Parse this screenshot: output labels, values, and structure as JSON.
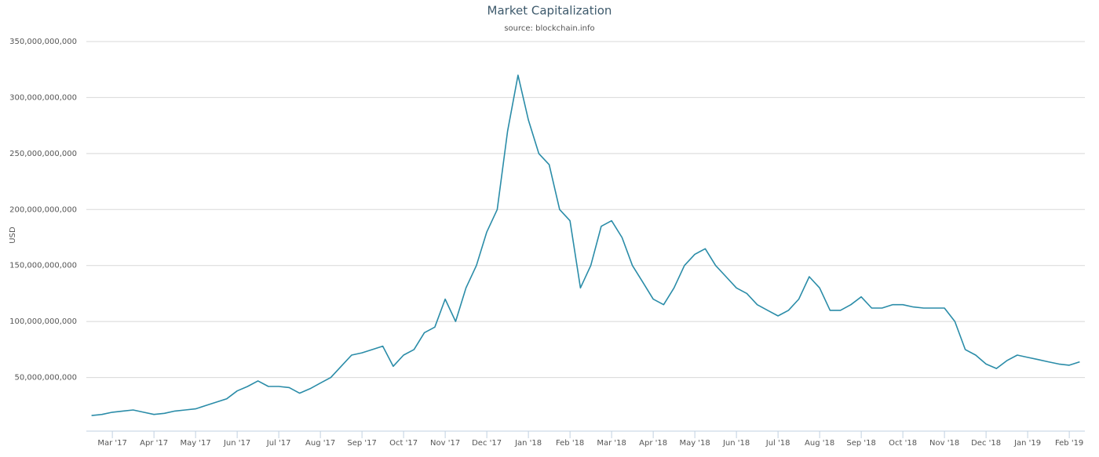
{
  "chart_data": {
    "type": "line",
    "title": "Market Capitalization",
    "subtitle": "source: blockchain.info",
    "y_label": "USD",
    "categories": [
      null,
      null,
      "Mar '17",
      null,
      null,
      null,
      "Apr '17",
      null,
      null,
      null,
      "May '17",
      null,
      null,
      null,
      "Jun '17",
      null,
      null,
      null,
      "Jul '17",
      null,
      null,
      null,
      "Aug '17",
      null,
      null,
      null,
      "Sep '17",
      null,
      null,
      null,
      "Oct '17",
      null,
      null,
      null,
      "Nov '17",
      null,
      null,
      null,
      "Dec '17",
      null,
      null,
      null,
      "Jan '18",
      null,
      null,
      null,
      "Feb '18",
      null,
      null,
      null,
      "Mar '18",
      null,
      null,
      null,
      "Apr '18",
      null,
      null,
      null,
      "May '18",
      null,
      null,
      null,
      "Jun '18",
      null,
      null,
      null,
      "Jul '18",
      null,
      null,
      null,
      "Aug '18",
      null,
      null,
      null,
      "Sep '18",
      null,
      null,
      null,
      "Oct '18",
      null,
      null,
      null,
      "Nov '18",
      null,
      null,
      null,
      "Dec '18",
      null,
      null,
      null,
      "Jan '19",
      null,
      null,
      null,
      "Feb '19",
      null
    ],
    "series": [
      {
        "name": "Market Capitalization",
        "color": "#2a8ca8",
        "values": [
          16000000000.0,
          17000000000.0,
          19000000000.0,
          20000000000.0,
          21000000000.0,
          19000000000.0,
          17000000000.0,
          18000000000.0,
          20000000000.0,
          21000000000.0,
          22000000000.0,
          25000000000.0,
          28000000000.0,
          31000000000.0,
          38000000000.0,
          42000000000.0,
          47000000000.0,
          42000000000.0,
          42000000000.0,
          41000000000.0,
          36000000000.0,
          40000000000.0,
          45000000000.0,
          50000000000.0,
          60000000000.0,
          70000000000.0,
          72000000000.0,
          75000000000.0,
          78000000000.0,
          60000000000.0,
          70000000000.0,
          75000000000.0,
          90000000000.0,
          95000000000.0,
          120000000000.0,
          100000000000.0,
          130000000000.0,
          150000000000.0,
          180000000000.0,
          200000000000.0,
          270000000000.0,
          320000000000.0,
          280000000000.0,
          250000000000.0,
          240000000000.0,
          200000000000.0,
          190000000000.0,
          130000000000.0,
          150000000000.0,
          185000000000.0,
          190000000000.0,
          175000000000.0,
          150000000000.0,
          135000000000.0,
          120000000000.0,
          115000000000.0,
          130000000000.0,
          150000000000.0,
          160000000000.0,
          165000000000.0,
          150000000000.0,
          140000000000.0,
          130000000000.0,
          125000000000.0,
          115000000000.0,
          110000000000.0,
          105000000000.0,
          110000000000.0,
          120000000000.0,
          140000000000.0,
          130000000000.0,
          110000000000.0,
          110000000000.0,
          115000000000.0,
          122000000000.0,
          112000000000.0,
          112000000000.0,
          115000000000.0,
          115000000000.0,
          113000000000.0,
          112000000000.0,
          112000000000.0,
          112000000000.0,
          100000000000.0,
          75000000000.0,
          70000000000.0,
          62000000000.0,
          58000000000.0,
          65000000000.0,
          70000000000.0,
          68000000000.0,
          66000000000.0,
          64000000000.0,
          62000000000.0,
          61000000000.0,
          64000000000.0
        ]
      }
    ],
    "ylim": [
      0,
      350000000000
    ],
    "yticks": [
      {
        "value": 50000000000,
        "label": "50,000,000,000"
      },
      {
        "value": 100000000000,
        "label": "100,000,000,000"
      },
      {
        "value": 150000000000,
        "label": "150,000,000,000"
      },
      {
        "value": 200000000000,
        "label": "200,000,000,000"
      },
      {
        "value": 250000000000,
        "label": "250,000,000,000"
      },
      {
        "value": 300000000000,
        "label": "300,000,000,000"
      },
      {
        "value": 350000000000,
        "label": "350,000,000,000"
      }
    ],
    "grid": true
  }
}
